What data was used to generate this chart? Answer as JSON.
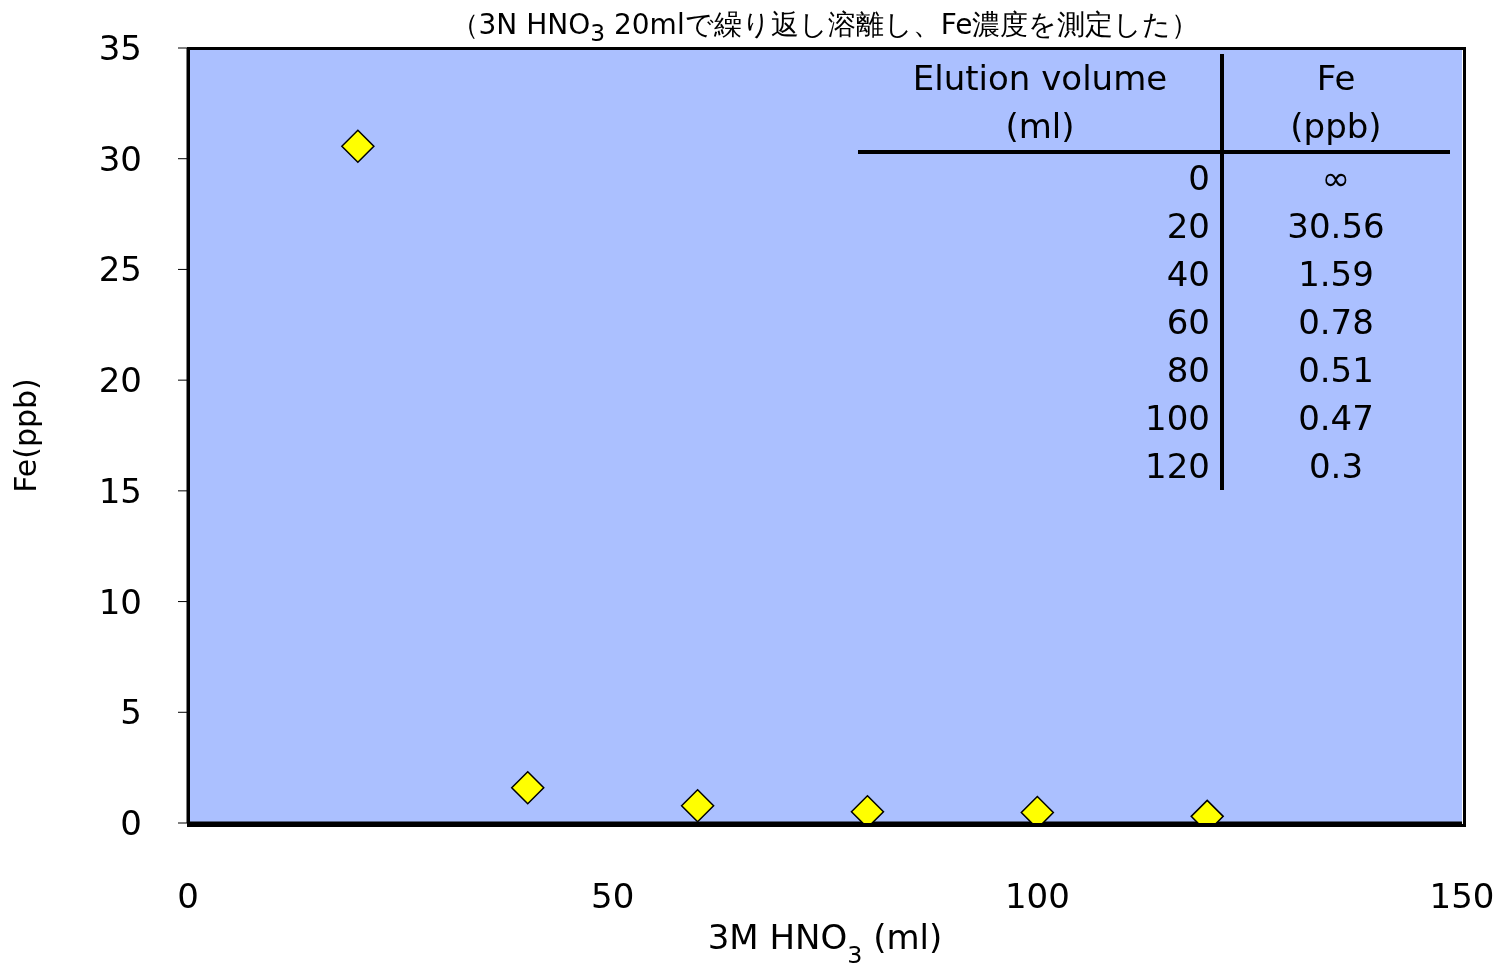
{
  "chart_data": {
    "type": "scatter",
    "title": "（3N HNO$_{3}$ 20mlで繰り返し溶離し、Fe濃度を測定した）",
    "xlabel": "3M HNO$_{3}$ (ml)",
    "ylabel": "Fe(ppb)",
    "x": [
      20,
      40,
      60,
      80,
      100,
      120
    ],
    "series": [
      {
        "color": "#ffff00",
        "values": [
          30.56,
          1.59,
          0.78,
          0.51,
          0.47,
          0.3
        ]
      }
    ],
    "annotations": [
      "Elution volume\n(ml)",
      "Fe\n(ppb)",
      "0",
      "∞",
      "20",
      "30.56",
      "40",
      "1.59",
      "60",
      "0.78",
      "80",
      "0.51",
      "100",
      "0.47",
      "120",
      "0.3"
    ],
    "marker": "diamond",
    "grid": false,
    "legend": false,
    "xlim": [
      0,
      150
    ],
    "xticks": [
      0,
      50,
      100,
      150
    ],
    "ylim": [
      0,
      35
    ],
    "yticks": [
      0,
      5,
      10,
      15,
      20,
      25,
      30,
      35
    ]
  }
}
